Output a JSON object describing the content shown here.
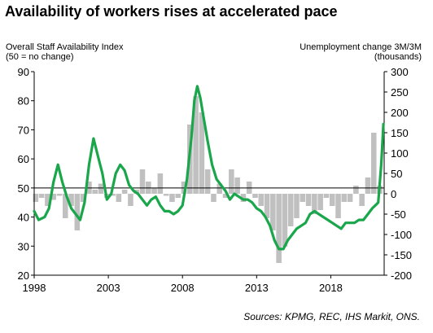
{
  "title": "Availability of workers rises at accelerated pace",
  "left_axis_label": [
    "Overall Staff Availability  Index",
    "(50 = no change)"
  ],
  "right_axis_label": [
    "Unemployment  change 3M/3M",
    "(thousands)"
  ],
  "source": "Sources: KPMG, REC, IHS Markit, ONS.",
  "colors": {
    "line": "#1aa64b",
    "bars": "#c0c0c0",
    "axis": "#000000"
  },
  "chart_data": {
    "type": "line+bar",
    "x_range": [
      1998,
      2021.6
    ],
    "x_ticks": [
      "1998",
      "2003",
      "2008",
      "2013",
      "2018"
    ],
    "x_tick_values": [
      1998,
      2003,
      2008,
      2013,
      2018
    ],
    "y_left": {
      "range": [
        20,
        90
      ],
      "ticks": [
        "20",
        "30",
        "40",
        "50",
        "60",
        "70",
        "80",
        "90"
      ],
      "tick_values": [
        20,
        30,
        40,
        50,
        60,
        70,
        80,
        90
      ]
    },
    "y_right": {
      "range": [
        -200,
        300
      ],
      "ticks": [
        "-200",
        "-150",
        "-100",
        "-50",
        "0",
        "50",
        "100",
        "150",
        "200",
        "250",
        "300"
      ],
      "tick_values": [
        -200,
        -150,
        -100,
        -50,
        0,
        50,
        100,
        150,
        200,
        250,
        300
      ]
    },
    "reference_line": {
      "axis": "left",
      "value": 50
    },
    "series": [
      {
        "kind": "line",
        "axis": "left",
        "x": [
          1998.0,
          1998.3,
          1998.7,
          1999.0,
          1999.3,
          1999.6,
          1999.9,
          2000.2,
          2000.5,
          2000.8,
          2001.1,
          2001.4,
          2001.7,
          2002.0,
          2002.3,
          2002.6,
          2002.9,
          2003.2,
          2003.5,
          2003.8,
          2004.1,
          2004.4,
          2004.7,
          2005.0,
          2005.3,
          2005.6,
          2005.9,
          2006.2,
          2006.5,
          2006.8,
          2007.1,
          2007.4,
          2007.7,
          2008.0,
          2008.3,
          2008.6,
          2008.8,
          2009.0,
          2009.2,
          2009.4,
          2009.7,
          2010.0,
          2010.3,
          2010.6,
          2010.9,
          2011.2,
          2011.5,
          2011.8,
          2012.1,
          2012.4,
          2012.7,
          2013.0,
          2013.3,
          2013.6,
          2013.9,
          2014.2,
          2014.5,
          2014.8,
          2015.1,
          2015.4,
          2015.7,
          2016.0,
          2016.3,
          2016.6,
          2016.9,
          2017.2,
          2017.5,
          2017.8,
          2018.1,
          2018.4,
          2018.7,
          2019.0,
          2019.3,
          2019.6,
          2019.9,
          2020.2,
          2020.5,
          2020.8,
          2021.0,
          2021.2,
          2021.4,
          2021.55
        ],
        "y": [
          42,
          39,
          40,
          43,
          52,
          58,
          52,
          47,
          43,
          41,
          39,
          45,
          58,
          67,
          61,
          55,
          46,
          48,
          55,
          58,
          56,
          51,
          49,
          48,
          46,
          44,
          46,
          47,
          44,
          42,
          42,
          41,
          42,
          44,
          53,
          67,
          80,
          85,
          81,
          75,
          66,
          58,
          53,
          51,
          49,
          46,
          48,
          47,
          46,
          46,
          45,
          43,
          42,
          40,
          37,
          32,
          29,
          29,
          32,
          34,
          36,
          37,
          38,
          41,
          42,
          41,
          40,
          39,
          38,
          37,
          36,
          38,
          38,
          38,
          39,
          39,
          41,
          43,
          44,
          45,
          58,
          72
        ]
      },
      {
        "kind": "bar",
        "axis": "right",
        "x": [
          1998.1,
          1998.5,
          1998.9,
          1999.3,
          1999.7,
          2000.1,
          2000.5,
          2000.9,
          2001.3,
          2001.7,
          2002.1,
          2002.5,
          2002.9,
          2003.3,
          2003.7,
          2004.1,
          2004.5,
          2004.9,
          2005.3,
          2005.7,
          2006.1,
          2006.5,
          2006.9,
          2007.3,
          2007.7,
          2008.1,
          2008.5,
          2008.9,
          2009.3,
          2009.7,
          2010.1,
          2010.5,
          2010.9,
          2011.3,
          2011.7,
          2012.1,
          2012.5,
          2012.9,
          2013.3,
          2013.7,
          2014.1,
          2014.5,
          2014.9,
          2015.3,
          2015.7,
          2016.1,
          2016.5,
          2016.9,
          2017.3,
          2017.7,
          2018.1,
          2018.5,
          2018.9,
          2019.3,
          2019.7,
          2020.1,
          2020.5,
          2020.9,
          2021.3
        ],
        "y": [
          -20,
          -10,
          -30,
          -15,
          -5,
          -60,
          -30,
          -90,
          -20,
          30,
          10,
          25,
          -10,
          -5,
          -20,
          10,
          -30,
          10,
          60,
          30,
          15,
          50,
          -5,
          -20,
          -10,
          30,
          170,
          240,
          200,
          60,
          -20,
          25,
          -10,
          60,
          40,
          -20,
          30,
          -10,
          -30,
          -60,
          -90,
          -170,
          -130,
          -80,
          -60,
          -20,
          -30,
          -50,
          -40,
          -10,
          -30,
          -60,
          -20,
          -20,
          20,
          -30,
          40,
          150,
          20
        ]
      }
    ]
  }
}
